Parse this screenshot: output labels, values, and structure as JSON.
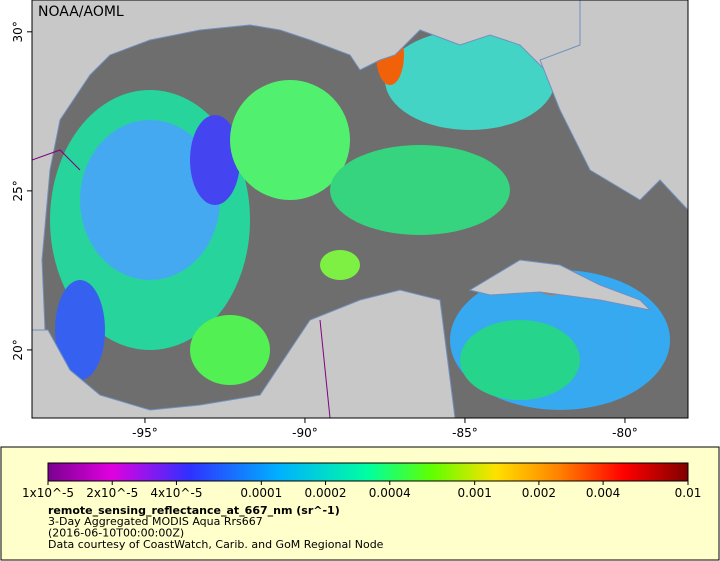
{
  "map": {
    "credit": "NOAA/AOML",
    "xlim": [
      -98.53,
      -78.03
    ],
    "ylim": [
      17.86,
      31.0
    ],
    "xticks": [
      {
        "value": -95,
        "label": "-95°"
      },
      {
        "value": -90,
        "label": "-90°"
      },
      {
        "value": -85,
        "label": "-85°"
      },
      {
        "value": -80,
        "label": "-80°"
      }
    ],
    "yticks": [
      {
        "value": 30,
        "label": "30°"
      },
      {
        "value": 25,
        "label": "25°"
      },
      {
        "value": 20,
        "label": "20°"
      }
    ]
  },
  "legend": {
    "scale": "log",
    "lim": [
      1e-05,
      0.01
    ],
    "ticks": [
      {
        "value": 1e-05,
        "label": "1x10^-5"
      },
      {
        "value": 2e-05,
        "label": "2x10^-5"
      },
      {
        "value": 4e-05,
        "label": "4x10^-5"
      },
      0.0001,
      0.0002,
      0.0004,
      0.001,
      0.002,
      0.004,
      0.01
    ],
    "variable": "remote_sensing_reflectance_at_667_nm (sr^-1)",
    "lines": [
      "3-Day Aggregated MODIS Aqua Rrs667",
      "(2016-06-10T00:00:00Z)",
      "Data courtesy of CoastWatch, Carib. and GoM Regional Node"
    ]
  }
}
